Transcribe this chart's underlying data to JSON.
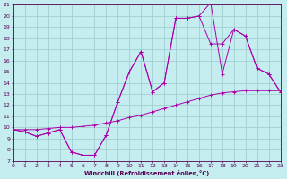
{
  "bg_color": "#c5ecee",
  "line_color": "#aa00aa",
  "grid_color": "#a0d0d0",
  "axis_color": "#550055",
  "tick_color": "#550055",
  "xlabel": "Windchill (Refroidissement éolien,°C)",
  "xlim": [
    0,
    23
  ],
  "ylim": [
    7,
    21
  ],
  "xticks": [
    0,
    1,
    2,
    3,
    4,
    5,
    6,
    7,
    8,
    9,
    10,
    11,
    12,
    13,
    14,
    15,
    16,
    17,
    18,
    19,
    20,
    21,
    22,
    23
  ],
  "yticks": [
    7,
    8,
    9,
    10,
    11,
    12,
    13,
    14,
    15,
    16,
    17,
    18,
    19,
    20,
    21
  ],
  "line1_x": [
    0,
    1,
    2,
    3,
    4,
    5,
    6,
    7,
    8,
    9,
    10,
    11,
    12,
    13,
    14,
    15,
    16,
    17,
    18,
    19,
    20,
    21,
    22,
    23
  ],
  "line1_y": [
    9.8,
    9.6,
    9.2,
    9.5,
    9.8,
    7.8,
    7.5,
    7.5,
    9.3,
    12.3,
    15.0,
    16.8,
    13.2,
    14.0,
    19.8,
    19.8,
    20.0,
    21.2,
    14.8,
    18.8,
    18.2,
    15.3,
    14.8,
    13.2
  ],
  "line2_x": [
    0,
    1,
    2,
    3,
    4,
    5,
    6,
    7,
    8,
    9,
    10,
    11,
    12,
    13,
    14,
    15,
    16,
    17,
    18,
    19,
    20,
    21,
    22,
    23
  ],
  "line2_y": [
    9.8,
    9.6,
    9.2,
    9.5,
    9.8,
    7.8,
    7.5,
    7.5,
    9.3,
    12.3,
    15.0,
    16.8,
    13.2,
    14.0,
    19.8,
    19.8,
    20.0,
    17.5,
    17.5,
    18.8,
    18.2,
    15.3,
    14.8,
    13.2
  ],
  "line3_x": [
    0,
    1,
    2,
    3,
    4,
    5,
    6,
    7,
    8,
    9,
    10,
    11,
    12,
    13,
    14,
    15,
    16,
    17,
    18,
    19,
    20,
    21,
    22,
    23
  ],
  "line3_y": [
    9.8,
    9.8,
    9.8,
    9.9,
    10.0,
    10.0,
    10.1,
    10.2,
    10.4,
    10.6,
    10.9,
    11.1,
    11.4,
    11.7,
    12.0,
    12.3,
    12.6,
    12.9,
    13.1,
    13.2,
    13.3,
    13.3,
    13.3,
    13.3
  ]
}
